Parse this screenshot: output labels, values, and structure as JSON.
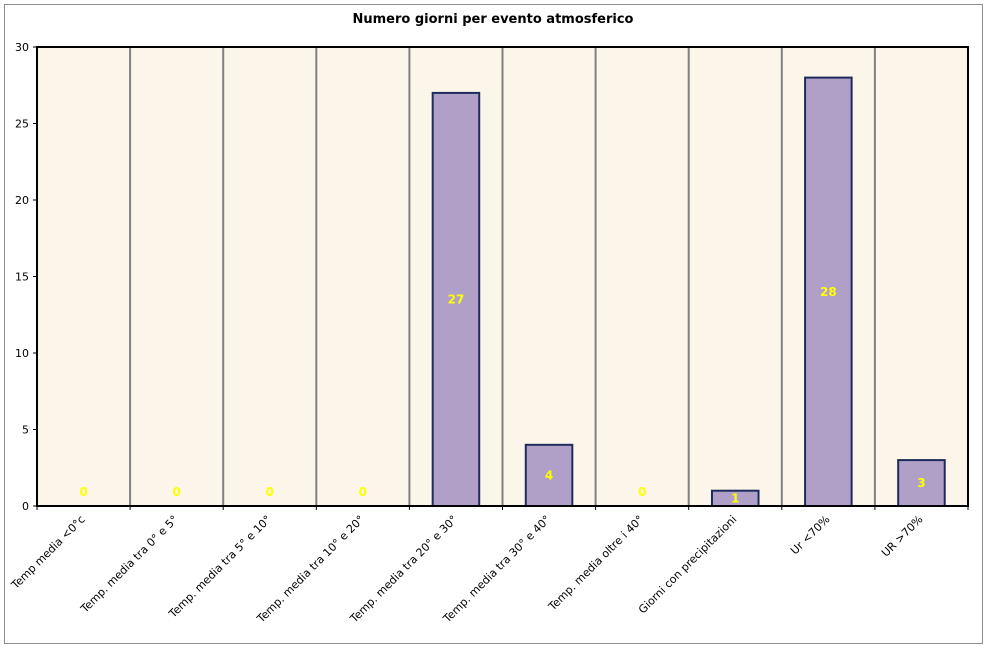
{
  "chart_data": {
    "type": "bar",
    "title": "Numero giorni per evento atmosferico",
    "xlabel": "",
    "ylabel": "",
    "ylim": [
      0,
      30
    ],
    "yticks": [
      0,
      5,
      10,
      15,
      20,
      25,
      30
    ],
    "grid": "vertical",
    "categories": [
      "Temp media <0°c",
      "Temp. media tra 0° e 5°",
      "Temp. media tra 5° e 10°",
      "Temp. media tra 10° e 20°",
      "Temp. media tra 20° e 30°",
      "Temp. media tra 30° e 40°",
      "Temp. media oltre i 40°",
      "Giorni con precipitazioni",
      "Ur <70%",
      "UR >70%"
    ],
    "values": [
      0,
      0,
      0,
      0,
      27,
      4,
      0,
      1,
      28,
      3
    ],
    "colors": {
      "bar_fill": "#b0a0c8",
      "bar_stroke": "#1f2a5c",
      "plot_background": "#fcf6ea",
      "data_label": "#ffff00",
      "grid": "#808080"
    }
  }
}
